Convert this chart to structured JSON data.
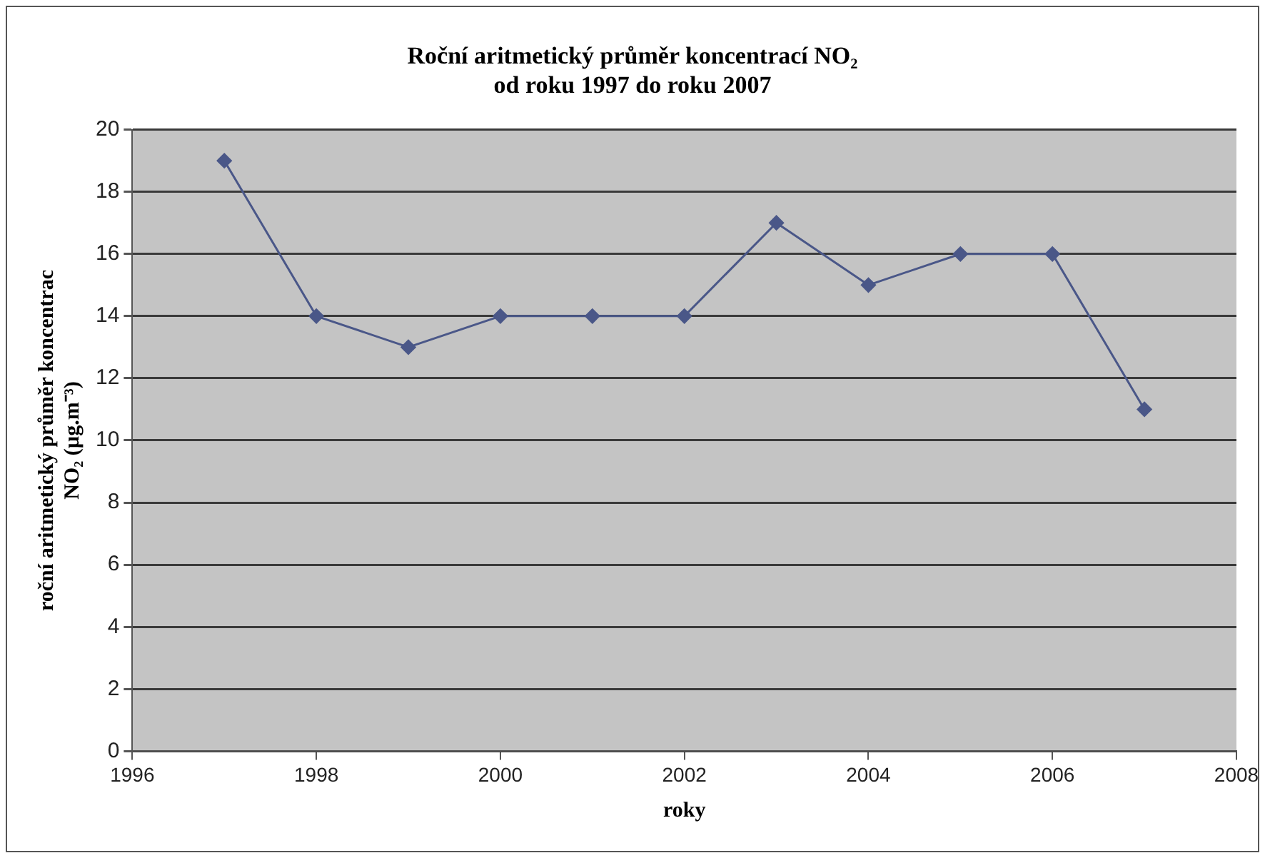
{
  "chart_data": {
    "type": "line",
    "title": "Roční aritmetický průměr koncentrací NO₂\nod roku 1997 do roku 2007",
    "xlabel": "roky",
    "ylabel": "roční aritmetický průměr koncentrac\nNO₂ (µg.m⁻³)",
    "x": [
      1997,
      1998,
      1999,
      2000,
      2001,
      2002,
      2003,
      2004,
      2005,
      2006,
      2007
    ],
    "series": [
      {
        "color": "#4a5788",
        "values": [
          19,
          14,
          13,
          14,
          14,
          14,
          17,
          15,
          16,
          16,
          11
        ]
      }
    ],
    "xlim": [
      1996,
      2008
    ],
    "xticks": [
      1996,
      1998,
      2000,
      2002,
      2004,
      2006,
      2008
    ],
    "ylim": [
      0,
      20
    ],
    "yticks": [
      0,
      2,
      4,
      6,
      8,
      10,
      12,
      14,
      16,
      18,
      20
    ],
    "grid": "y",
    "legend": false,
    "marker": "diamond",
    "line_style": "solid"
  }
}
